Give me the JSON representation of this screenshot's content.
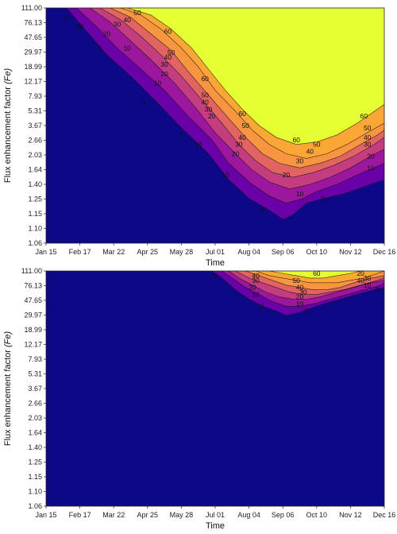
{
  "chart_data": [
    {
      "type": "contour",
      "xlabel": "Time",
      "ylabel": "Flux enhancement factor",
      "ylabel_symbol": "(Fe)",
      "x_ticks": [
        "Jan 15",
        "Feb 17",
        "Mar 22",
        "Apr 25",
        "May 28",
        "Jul 01",
        "Aug 04",
        "Sep 06",
        "Oct 10",
        "Nov 12",
        "Dec 16"
      ],
      "y_ticks": [
        "111.00",
        "76.13",
        "47.65",
        "29.97",
        "18.99",
        "12.17",
        "7.93",
        "5.31",
        "3.67",
        "2.66",
        "2.03",
        "1.64",
        "1.40",
        "1.25",
        "1.15",
        "1.10",
        "1.06"
      ],
      "levels": [
        5,
        10,
        20,
        30,
        40,
        50,
        60
      ],
      "level_colors": [
        "#0d0887",
        "#3a049a",
        "#6a00a8",
        "#9c179e",
        "#c33d80",
        "#e16462",
        "#f89540",
        "#fca636",
        "#e6ff33"
      ],
      "contours": [
        {
          "level": 5,
          "x": [
            0.06,
            0.12,
            0.18,
            0.25,
            0.32,
            0.4,
            0.48,
            0.54,
            0.6,
            0.66,
            0.7,
            0.73,
            0.77,
            0.82,
            0.88,
            0.94,
            1.0
          ],
          "y": [
            0.0,
            0.1,
            0.2,
            0.29,
            0.39,
            0.51,
            0.62,
            0.73,
            0.81,
            0.86,
            0.9,
            0.88,
            0.83,
            0.81,
            0.79,
            0.76,
            0.73
          ]
        },
        {
          "level": 10,
          "x": [
            0.09,
            0.15,
            0.21,
            0.28,
            0.35,
            0.42,
            0.49,
            0.54,
            0.6,
            0.66,
            0.71,
            0.76,
            0.8,
            0.86,
            0.92,
            0.97,
            1.0
          ],
          "y": [
            0.0,
            0.08,
            0.17,
            0.26,
            0.35,
            0.46,
            0.56,
            0.66,
            0.74,
            0.8,
            0.83,
            0.81,
            0.78,
            0.75,
            0.71,
            0.68,
            0.66
          ]
        },
        {
          "level": 20,
          "x": [
            0.13,
            0.19,
            0.25,
            0.31,
            0.38,
            0.44,
            0.5,
            0.56,
            0.61,
            0.66,
            0.72,
            0.78,
            0.84,
            0.9,
            0.96,
            1.0
          ],
          "y": [
            0.0,
            0.06,
            0.14,
            0.22,
            0.32,
            0.42,
            0.53,
            0.62,
            0.69,
            0.74,
            0.77,
            0.75,
            0.72,
            0.68,
            0.63,
            0.6
          ]
        },
        {
          "level": 30,
          "x": [
            0.16,
            0.22,
            0.28,
            0.34,
            0.4,
            0.46,
            0.52,
            0.57,
            0.62,
            0.67,
            0.73,
            0.79,
            0.85,
            0.91,
            0.97,
            1.0
          ],
          "y": [
            0.0,
            0.05,
            0.12,
            0.2,
            0.29,
            0.39,
            0.49,
            0.58,
            0.65,
            0.7,
            0.72,
            0.7,
            0.67,
            0.63,
            0.58,
            0.55
          ]
        },
        {
          "level": 40,
          "x": [
            0.19,
            0.25,
            0.31,
            0.37,
            0.42,
            0.48,
            0.54,
            0.59,
            0.64,
            0.69,
            0.75,
            0.81,
            0.87,
            0.93,
            0.98,
            1.0
          ],
          "y": [
            0.0,
            0.04,
            0.11,
            0.18,
            0.27,
            0.37,
            0.47,
            0.55,
            0.62,
            0.66,
            0.68,
            0.66,
            0.63,
            0.58,
            0.54,
            0.52
          ]
        },
        {
          "level": 50,
          "x": [
            0.22,
            0.28,
            0.34,
            0.4,
            0.45,
            0.5,
            0.56,
            0.61,
            0.66,
            0.71,
            0.77,
            0.83,
            0.89,
            0.95,
            1.0
          ],
          "y": [
            0.0,
            0.03,
            0.09,
            0.17,
            0.25,
            0.35,
            0.44,
            0.52,
            0.58,
            0.62,
            0.64,
            0.62,
            0.58,
            0.53,
            0.49
          ]
        },
        {
          "level": 60,
          "x": [
            0.24,
            0.31,
            0.37,
            0.43,
            0.48,
            0.53,
            0.58,
            0.63,
            0.68,
            0.74,
            0.8,
            0.86,
            0.92,
            0.97,
            1.0
          ],
          "y": [
            0.0,
            0.03,
            0.09,
            0.17,
            0.26,
            0.35,
            0.43,
            0.5,
            0.55,
            0.58,
            0.57,
            0.54,
            0.49,
            0.44,
            0.41
          ]
        }
      ],
      "labels": [
        {
          "text": "5",
          "x": 0.06,
          "y": 0.04
        },
        {
          "text": "10",
          "x": 0.1,
          "y": 0.08
        },
        {
          "text": "5",
          "x": 0.16,
          "y": 0.17
        },
        {
          "text": "10",
          "x": 0.24,
          "y": 0.17
        },
        {
          "text": "20",
          "x": 0.18,
          "y": 0.11
        },
        {
          "text": "30",
          "x": 0.21,
          "y": 0.07
        },
        {
          "text": "40",
          "x": 0.24,
          "y": 0.05
        },
        {
          "text": "50",
          "x": 0.27,
          "y": 0.02
        },
        {
          "text": "60",
          "x": 0.36,
          "y": 0.1
        },
        {
          "text": "50",
          "x": 0.37,
          "y": 0.19
        },
        {
          "text": "40",
          "x": 0.36,
          "y": 0.21
        },
        {
          "text": "30",
          "x": 0.35,
          "y": 0.24
        },
        {
          "text": "20",
          "x": 0.35,
          "y": 0.28
        },
        {
          "text": "10",
          "x": 0.33,
          "y": 0.32
        },
        {
          "text": "5",
          "x": 0.29,
          "y": 0.4
        },
        {
          "text": "5",
          "x": 0.4,
          "y": 0.54
        },
        {
          "text": "10",
          "x": 0.45,
          "y": 0.58
        },
        {
          "text": "20",
          "x": 0.49,
          "y": 0.46
        },
        {
          "text": "30",
          "x": 0.48,
          "y": 0.43
        },
        {
          "text": "40",
          "x": 0.47,
          "y": 0.4
        },
        {
          "text": "50",
          "x": 0.47,
          "y": 0.37
        },
        {
          "text": "60",
          "x": 0.47,
          "y": 0.3
        },
        {
          "text": "60",
          "x": 0.58,
          "y": 0.45
        },
        {
          "text": "50",
          "x": 0.59,
          "y": 0.5
        },
        {
          "text": "40",
          "x": 0.58,
          "y": 0.55
        },
        {
          "text": "30",
          "x": 0.57,
          "y": 0.58
        },
        {
          "text": "20",
          "x": 0.56,
          "y": 0.62
        },
        {
          "text": "10",
          "x": 0.53,
          "y": 0.71
        },
        {
          "text": "5",
          "x": 0.64,
          "y": 0.86
        },
        {
          "text": "10",
          "x": 0.75,
          "y": 0.79
        },
        {
          "text": "20",
          "x": 0.71,
          "y": 0.71
        },
        {
          "text": "30",
          "x": 0.75,
          "y": 0.65
        },
        {
          "text": "40",
          "x": 0.78,
          "y": 0.61
        },
        {
          "text": "50",
          "x": 0.8,
          "y": 0.58
        },
        {
          "text": "60",
          "x": 0.74,
          "y": 0.56
        },
        {
          "text": "5",
          "x": 0.82,
          "y": 0.81
        },
        {
          "text": "10",
          "x": 0.96,
          "y": 0.68
        },
        {
          "text": "20",
          "x": 0.96,
          "y": 0.63
        },
        {
          "text": "30",
          "x": 0.95,
          "y": 0.58
        },
        {
          "text": "40",
          "x": 0.95,
          "y": 0.55
        },
        {
          "text": "50",
          "x": 0.95,
          "y": 0.51
        },
        {
          "text": "60",
          "x": 0.94,
          "y": 0.46
        }
      ]
    },
    {
      "type": "contour",
      "xlabel": "Time",
      "ylabel": "Flux enhancement factor",
      "ylabel_symbol": "(Fe)",
      "x_ticks": [
        "Jan 15",
        "Feb 17",
        "Mar 22",
        "Apr 25",
        "May 28",
        "Jul 01",
        "Aug 04",
        "Sep 06",
        "Oct 10",
        "Nov 12",
        "Dec 16"
      ],
      "y_ticks": [
        "111.00",
        "76.13",
        "47.65",
        "29.97",
        "18.99",
        "12.17",
        "7.93",
        "5.31",
        "3.67",
        "2.66",
        "2.03",
        "1.64",
        "1.40",
        "1.25",
        "1.15",
        "1.10",
        "1.06"
      ],
      "levels": [
        5,
        10,
        20,
        30,
        40,
        50,
        60
      ],
      "level_colors": [
        "#0d0887",
        "#3a049a",
        "#6a00a8",
        "#9c179e",
        "#c33d80",
        "#e16462",
        "#f89540",
        "#fca636",
        "#e6ff33"
      ],
      "contours": [
        {
          "level": 5,
          "x": [
            0.49,
            0.52,
            0.56,
            0.6,
            0.64,
            0.68,
            0.71,
            0.74,
            0.78,
            0.82,
            0.87,
            0.92,
            0.97,
            1.0
          ],
          "y": [
            0.0,
            0.03,
            0.08,
            0.12,
            0.15,
            0.17,
            0.19,
            0.18,
            0.16,
            0.14,
            0.12,
            0.1,
            0.08,
            0.07
          ]
        },
        {
          "level": 10,
          "x": [
            0.52,
            0.55,
            0.59,
            0.63,
            0.67,
            0.71,
            0.75,
            0.79,
            0.84,
            0.89,
            0.94,
            0.99,
            1.0
          ],
          "y": [
            0.0,
            0.03,
            0.07,
            0.1,
            0.13,
            0.15,
            0.15,
            0.14,
            0.12,
            0.1,
            0.08,
            0.06,
            0.05
          ]
        },
        {
          "level": 20,
          "x": [
            0.54,
            0.57,
            0.61,
            0.65,
            0.69,
            0.73,
            0.77,
            0.81,
            0.86,
            0.91,
            0.96,
            1.0
          ],
          "y": [
            0.0,
            0.03,
            0.06,
            0.09,
            0.11,
            0.12,
            0.12,
            0.11,
            0.09,
            0.07,
            0.05,
            0.04
          ]
        },
        {
          "level": 30,
          "x": [
            0.56,
            0.6,
            0.64,
            0.68,
            0.72,
            0.76,
            0.8,
            0.84,
            0.88,
            0.93,
            0.98,
            1.0
          ],
          "y": [
            0.0,
            0.03,
            0.05,
            0.07,
            0.09,
            0.1,
            0.1,
            0.09,
            0.08,
            0.06,
            0.04,
            0.03
          ]
        },
        {
          "level": 40,
          "x": [
            0.59,
            0.63,
            0.67,
            0.71,
            0.75,
            0.79,
            0.83,
            0.87,
            0.91,
            0.96,
            1.0
          ],
          "y": [
            0.0,
            0.02,
            0.04,
            0.06,
            0.07,
            0.08,
            0.08,
            0.07,
            0.05,
            0.03,
            0.02
          ]
        },
        {
          "level": 50,
          "x": [
            0.62,
            0.66,
            0.7,
            0.74,
            0.78,
            0.82,
            0.86,
            0.9,
            0.94,
            0.98,
            1.0
          ],
          "y": [
            0.0,
            0.02,
            0.03,
            0.04,
            0.05,
            0.05,
            0.05,
            0.04,
            0.03,
            0.01,
            0.0
          ]
        },
        {
          "level": 60,
          "x": [
            0.66,
            0.7,
            0.74,
            0.78,
            0.82,
            0.86,
            0.9,
            0.93
          ],
          "y": [
            0.0,
            0.01,
            0.02,
            0.03,
            0.03,
            0.02,
            0.01,
            0.0
          ]
        }
      ],
      "labels": [
        {
          "text": "5",
          "x": 0.5,
          "y": 0.02
        },
        {
          "text": "40",
          "x": 0.62,
          "y": 0.02
        },
        {
          "text": "30",
          "x": 0.62,
          "y": 0.04
        },
        {
          "text": "20",
          "x": 0.61,
          "y": 0.07
        },
        {
          "text": "10",
          "x": 0.62,
          "y": 0.1
        },
        {
          "text": "5",
          "x": 0.64,
          "y": 0.15
        },
        {
          "text": "60",
          "x": 0.8,
          "y": 0.01
        },
        {
          "text": "50",
          "x": 0.74,
          "y": 0.04
        },
        {
          "text": "40",
          "x": 0.75,
          "y": 0.07
        },
        {
          "text": "30",
          "x": 0.76,
          "y": 0.09
        },
        {
          "text": "20",
          "x": 0.75,
          "y": 0.11
        },
        {
          "text": "10",
          "x": 0.75,
          "y": 0.14
        },
        {
          "text": "5",
          "x": 0.77,
          "y": 0.17
        },
        {
          "text": "20",
          "x": 0.93,
          "y": 0.01
        },
        {
          "text": "30",
          "x": 0.95,
          "y": 0.03
        },
        {
          "text": "40",
          "x": 0.93,
          "y": 0.04
        },
        {
          "text": "10",
          "x": 0.95,
          "y": 0.06
        },
        {
          "text": "5",
          "x": 0.98,
          "y": 0.08
        }
      ]
    }
  ]
}
